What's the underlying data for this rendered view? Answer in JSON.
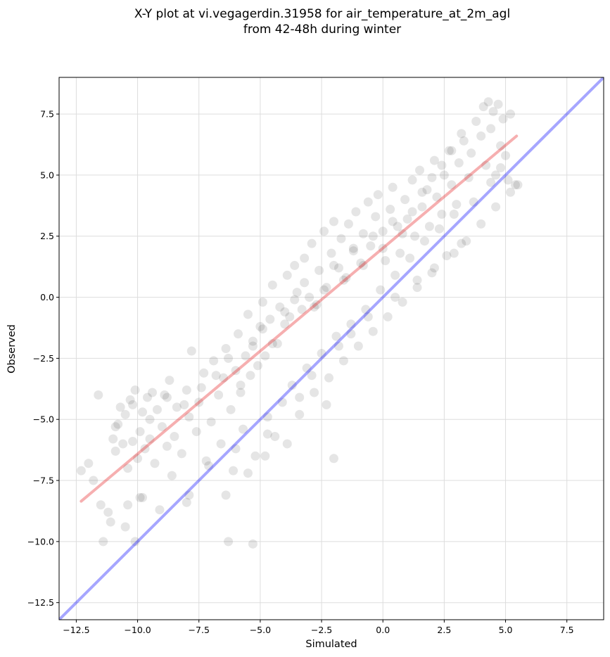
{
  "chart_data": {
    "type": "scatter",
    "title": [
      "X-Y plot at vi.vegagerdin.31958 for air_temperature_at_2m_agl",
      "from 42-48h during winter"
    ],
    "xlabel": "Simulated",
    "ylabel": "Observed",
    "xlim": [
      -13.2,
      9.0
    ],
    "ylim": [
      -13.2,
      9.0
    ],
    "xticks": [
      -12.5,
      -10.0,
      -7.5,
      -5.0,
      -2.5,
      0.0,
      2.5,
      5.0,
      7.5
    ],
    "yticks": [
      -12.5,
      -10.0,
      -7.5,
      -5.0,
      -2.5,
      0.0,
      2.5,
      5.0,
      7.5
    ],
    "xtick_labels": [
      "−12.5",
      "−10.0",
      "−7.5",
      "−5.0",
      "−2.5",
      "0.0",
      "2.5",
      "5.0",
      "7.5"
    ],
    "ytick_labels": [
      "−12.5",
      "−10.0",
      "−7.5",
      "−5.0",
      "−2.5",
      "0.0",
      "2.5",
      "5.0",
      "7.5"
    ],
    "grid": true,
    "colors": {
      "points": "#000000",
      "identity_line": "#0000ff",
      "fit_line": "#e41a1c",
      "grid": "#dddddd"
    },
    "lines": [
      {
        "role": "identity",
        "x": [
          -13.2,
          9.0
        ],
        "y": [
          -13.2,
          9.0
        ]
      },
      {
        "role": "fit",
        "x": [
          -12.3,
          5.45
        ],
        "y": [
          -8.35,
          6.6
        ]
      }
    ],
    "points": {
      "x": [
        -12.3,
        -12.0,
        -11.8,
        -11.5,
        -11.4,
        -11.2,
        -11.1,
        -11.0,
        -10.9,
        -10.8,
        -10.7,
        -10.6,
        -10.5,
        -10.4,
        -10.3,
        -10.2,
        -10.1,
        -10.0,
        -9.9,
        -9.8,
        -9.7,
        -9.6,
        -9.5,
        -9.4,
        -9.3,
        -9.2,
        -9.0,
        -8.9,
        -8.8,
        -8.7,
        -8.5,
        -8.4,
        -8.2,
        -8.0,
        -7.9,
        -7.8,
        -7.6,
        -7.5,
        -7.3,
        -7.0,
        -6.9,
        -6.7,
        -6.5,
        -6.4,
        -6.2,
        -6.0,
        -5.9,
        -5.8,
        -5.6,
        -5.5,
        -5.4,
        -5.3,
        -5.1,
        -5.0,
        -4.9,
        -4.8,
        -4.6,
        -4.5,
        -4.3,
        -4.2,
        -4.0,
        -3.9,
        -3.8,
        -3.6,
        -3.5,
        -3.3,
        -3.2,
        -3.0,
        -2.9,
        -2.7,
        -2.6,
        -2.4,
        -2.3,
        -2.1,
        -2.0,
        -1.8,
        -1.7,
        -1.5,
        -1.4,
        -1.2,
        -1.1,
        -0.9,
        -0.8,
        -0.6,
        -0.5,
        -0.3,
        -0.2,
        0.0,
        0.1,
        0.3,
        0.4,
        0.6,
        0.7,
        0.9,
        1.0,
        1.2,
        1.3,
        1.5,
        1.6,
        1.8,
        1.9,
        2.1,
        2.2,
        2.4,
        2.5,
        2.7,
        2.8,
        3.0,
        3.1,
        3.3,
        3.5,
        3.6,
        3.8,
        4.0,
        4.1,
        4.2,
        4.3,
        4.4,
        4.5,
        4.6,
        4.7,
        4.8,
        4.9,
        5.0,
        5.1,
        5.2,
        5.4,
        -10.5,
        -9.8,
        -9.1,
        -8.6,
        -7.9,
        -7.2,
        -6.6,
        -6.1,
        -5.7,
        -5.2,
        -4.7,
        -4.4,
        -4.1,
        -3.7,
        -3.4,
        -3.1,
        -2.8,
        -2.5,
        -2.2,
        -1.9,
        -1.6,
        -1.3,
        -1.0,
        -0.7,
        -0.4,
        -0.1,
        0.2,
        0.5,
        0.8,
        1.1,
        1.4,
        1.7,
        2.0,
        2.3,
        2.6,
        2.9,
        3.2,
        3.7,
        4.4,
        4.8,
        -10.9,
        -10.2,
        -9.5,
        -8.8,
        -8.1,
        -7.4,
        -6.8,
        -6.3,
        -5.8,
        -5.3,
        -4.9,
        -4.5,
        -4.0,
        -3.6,
        -3.2,
        -2.8,
        -2.4,
        -2.0,
        -1.6,
        -1.2,
        -0.8,
        -0.4,
        0.0,
        0.4,
        0.8,
        1.2,
        1.6,
        2.0,
        2.4,
        2.8,
        3.2,
        -6.3,
        -5.3,
        -10.1,
        -11.6,
        -6.4,
        -2.0,
        -4.8,
        -10.4,
        -9.9,
        -8.0,
        -7.1,
        -6.0,
        -5.5,
        -4.7,
        -3.9,
        -3.4,
        -2.9,
        -2.3,
        -1.8,
        -1.3,
        -0.6,
        0.5,
        1.4,
        2.1,
        2.9,
        3.4,
        4.0,
        4.6,
        5.2,
        5.5
      ],
      "y": [
        -7.1,
        -6.8,
        -7.5,
        -8.5,
        -10.0,
        -8.8,
        -9.2,
        -5.8,
        -6.3,
        -5.2,
        -4.5,
        -6.0,
        -4.8,
        -7.0,
        -4.2,
        -5.9,
        -3.8,
        -6.6,
        -5.5,
        -4.7,
        -6.2,
        -4.1,
        -5.8,
        -3.9,
        -6.8,
        -4.6,
        -5.3,
        -4.0,
        -6.1,
        -3.4,
        -5.7,
        -4.5,
        -6.4,
        -3.8,
        -4.9,
        -2.2,
        -5.5,
        -4.3,
        -3.1,
        -5.1,
        -2.6,
        -4.0,
        -3.3,
        -2.1,
        -4.6,
        -3.0,
        -1.5,
        -3.9,
        -2.4,
        -0.7,
        -3.2,
        -1.8,
        -2.8,
        -1.2,
        -0.2,
        -2.4,
        -0.9,
        0.5,
        -1.9,
        -0.4,
        -1.1,
        0.9,
        -0.8,
        1.3,
        0.2,
        -0.5,
        1.6,
        0.0,
        2.2,
        -0.3,
        1.1,
        2.7,
        0.4,
        1.8,
        3.1,
        1.2,
        2.4,
        0.8,
        3.0,
        2.0,
        3.5,
        1.4,
        2.6,
        3.9,
        2.1,
        3.3,
        4.2,
        2.7,
        1.5,
        3.6,
        4.5,
        2.9,
        1.8,
        4.0,
        3.2,
        4.8,
        2.5,
        5.2,
        3.7,
        4.4,
        2.9,
        5.6,
        4.1,
        3.4,
        5.0,
        6.0,
        4.6,
        3.8,
        5.5,
        6.4,
        4.9,
        5.9,
        7.2,
        6.6,
        7.8,
        5.4,
        8.0,
        6.9,
        7.6,
        5.0,
        7.9,
        6.2,
        7.3,
        5.8,
        4.8,
        7.5,
        4.6,
        -9.4,
        -8.2,
        -8.7,
        -7.3,
        -8.1,
        -6.7,
        -6.0,
        -7.1,
        -5.4,
        -6.5,
        -4.9,
        -5.7,
        -4.3,
        -3.6,
        -4.8,
        -2.9,
        -3.9,
        -2.3,
        -3.3,
        -1.6,
        -2.6,
        -1.1,
        -2.0,
        -0.5,
        -1.4,
        0.3,
        -0.8,
        0.9,
        -0.2,
        1.6,
        0.4,
        2.3,
        1.0,
        2.8,
        1.7,
        3.4,
        2.2,
        3.9,
        4.7,
        5.3,
        -5.3,
        -4.4,
        -5.0,
        -4.1,
        -4.4,
        -3.7,
        -3.2,
        -2.5,
        -3.6,
        -2.0,
        -1.3,
        -1.9,
        -0.6,
        -0.1,
        0.6,
        -0.4,
        0.3,
        1.3,
        0.7,
        1.9,
        1.3,
        2.5,
        2.0,
        3.1,
        2.6,
        3.5,
        4.3,
        4.9,
        5.4,
        6.0,
        6.7,
        -10.0,
        -10.1,
        -10.0,
        -4.0,
        -8.1,
        -6.6,
        -6.5,
        -8.5,
        -8.2,
        -8.4,
        -6.9,
        -6.2,
        -7.2,
        -5.6,
        -6.0,
        -4.1,
        -3.2,
        -4.4,
        -2.0,
        -1.5,
        -0.8,
        0.0,
        0.7,
        1.2,
        1.8,
        2.3,
        3.0,
        3.7,
        4.3,
        4.6
      ]
    }
  }
}
